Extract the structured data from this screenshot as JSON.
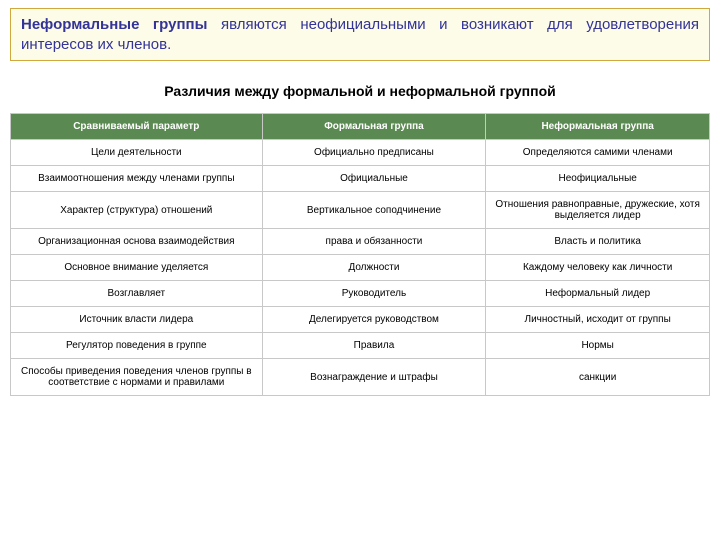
{
  "banner": {
    "html": "<b>Неформальные группы</b> являются неофициальными и возникают для удовлетворения интересов их членов.",
    "background": "#fdfce8",
    "border": "#cfa93d",
    "text_color": "#333399"
  },
  "subtitle": "Различия между формальной и неформальной группой",
  "table": {
    "header_bg": "#5a8a51",
    "header_text": "#ffffff",
    "row_border": "#c8c8c8",
    "columns": [
      "Сравниваемый параметр",
      "Формальная группа",
      "Неформальная группа"
    ],
    "rows": [
      [
        "Цели деятельности",
        "Официально предписаны",
        "Определяются самими членами"
      ],
      [
        "Взаимоотношения между членами группы",
        "Официальные",
        "Неофициальные"
      ],
      [
        "Характер (структура) отношений",
        "Вертикальное соподчинение",
        "Отношения равноправные, дружеские, хотя выделяется лидер"
      ],
      [
        "Организационная основа взаимодействия",
        "права и обязанности",
        "Власть и политика"
      ],
      [
        "Основное внимание уделяется",
        "Должности",
        "Каждому человеку как личности"
      ],
      [
        "Возглавляет",
        "Руководитель",
        "Неформальный лидер"
      ],
      [
        "Источник власти лидера",
        "Делегируется руководством",
        "Личностный, исходит от группы"
      ],
      [
        "Регулятор поведения в группе",
        "Правила",
        "Нормы"
      ],
      [
        "Способы приведения поведения членов группы в соответствие с нормами и правилами",
        "Вознаграждение и штрафы",
        "санкции"
      ]
    ]
  }
}
